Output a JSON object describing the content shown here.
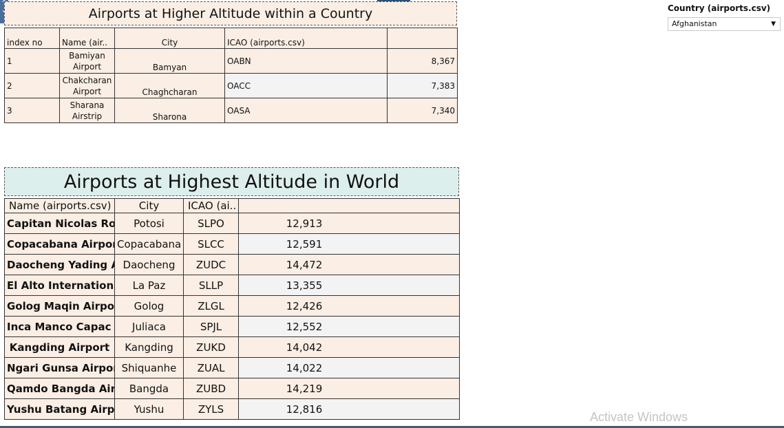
{
  "table1": {
    "title": "Airports at Higher Altitude within a Country",
    "headers": [
      "index no",
      "Name (air..",
      "City",
      "ICAO (airports.csv)",
      ""
    ],
    "rows": [
      {
        "index": "1",
        "name": "Bamiyan Airport",
        "city": "Bamyan",
        "icao": "OABN",
        "altitude": "8,367"
      },
      {
        "index": "2",
        "name": "Chakcharan Airport",
        "city": "Chaghcharan",
        "icao": "OACC",
        "altitude": "7,383"
      },
      {
        "index": "3",
        "name": "Sharana Airstrip",
        "city": "Sharona",
        "icao": "OASA",
        "altitude": "7,340"
      }
    ]
  },
  "table2": {
    "title": "Airports at Highest Altitude in World",
    "headers": [
      "Name (airports.csv)",
      "City",
      "ICAO (ai..",
      ""
    ],
    "rows": [
      {
        "name": "Capitan Nicolas Roj..",
        "city": "Potosi",
        "icao": "SLPO",
        "altitude": "12,913"
      },
      {
        "name": "Copacabana Airport",
        "city": "Copacabana",
        "icao": "SLCC",
        "altitude": "12,591"
      },
      {
        "name": "Daocheng Yading Ai..",
        "city": "Daocheng",
        "icao": "ZUDC",
        "altitude": "14,472"
      },
      {
        "name": "El Alto Internationa..",
        "city": "La Paz",
        "icao": "SLLP",
        "altitude": "13,355"
      },
      {
        "name": "Golog Maqin Airport",
        "city": "Golog",
        "icao": "ZLGL",
        "altitude": "12,426"
      },
      {
        "name": "Inca Manco Capac I..",
        "city": "Juliaca",
        "icao": "SPJL",
        "altitude": "12,552"
      },
      {
        "name": "Kangding Airport",
        "city": "Kangding",
        "icao": "ZUKD",
        "altitude": "14,042"
      },
      {
        "name": "Ngari Gunsa Airport",
        "city": "Shiquanhe",
        "icao": "ZUAL",
        "altitude": "14,022"
      },
      {
        "name": "Qamdo Bangda Air..",
        "city": "Bangda",
        "icao": "ZUBD",
        "altitude": "14,219"
      },
      {
        "name": "Yushu Batang Airpo..",
        "city": "Yushu",
        "icao": "ZYLS",
        "altitude": "12,816"
      }
    ]
  },
  "filter": {
    "label": "Country (airports.csv)",
    "selected": "Afghanistan",
    "icon": "dropdown-arrow-icon"
  },
  "watermark": "Activate Windows"
}
